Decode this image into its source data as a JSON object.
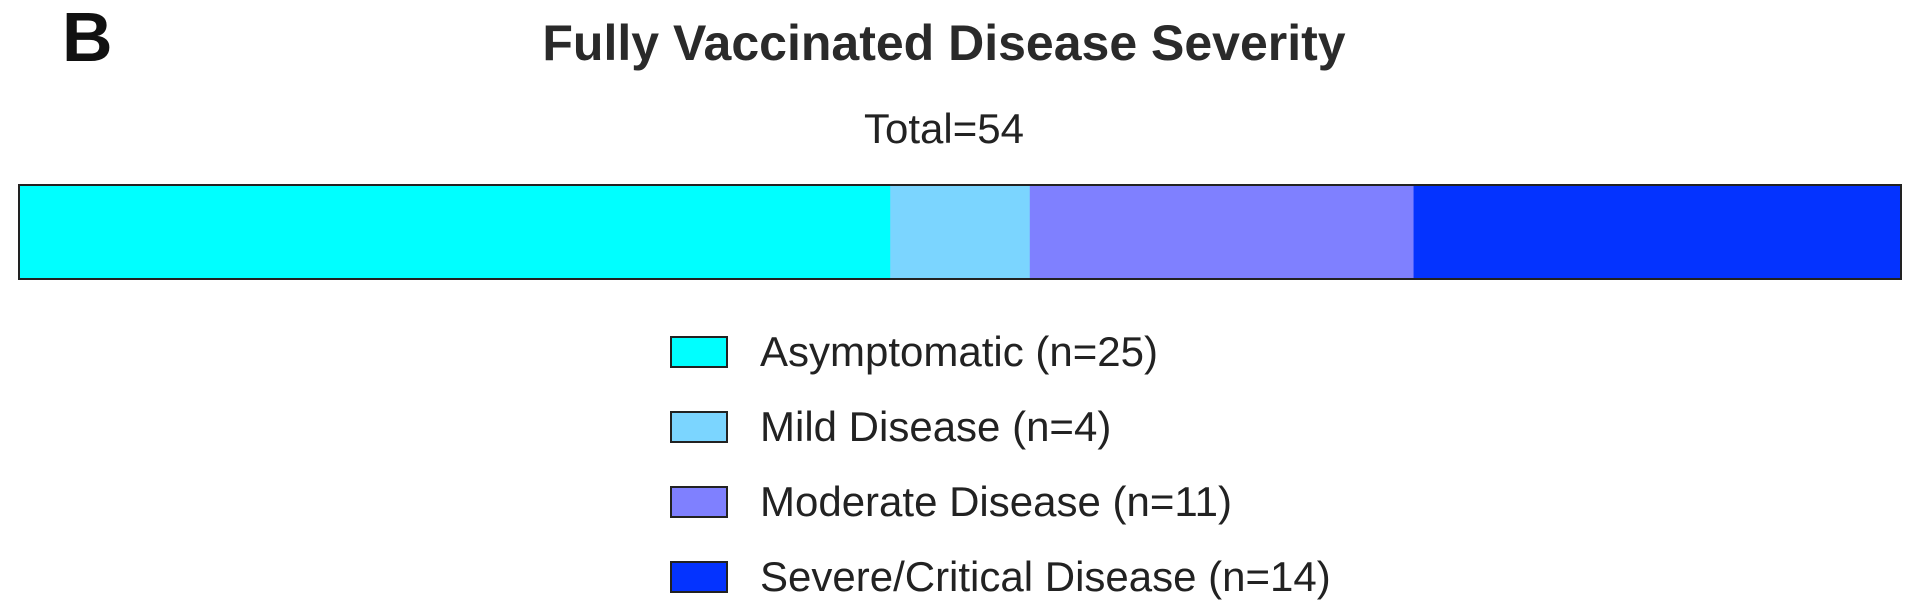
{
  "panel_letter": "B",
  "chart_data": {
    "type": "bar",
    "orientation": "horizontal-stacked",
    "title": "Fully Vaccinated Disease Severity",
    "subtitle": "Total=54",
    "total": 54,
    "categories": [
      "Asymptomatic (n=25)",
      "Mild Disease (n=4)",
      "Moderate Disease (n=11)",
      "Severe/Critical Disease (n=14)"
    ],
    "values": [
      25,
      4,
      11,
      14
    ],
    "colors": [
      "#00ffff",
      "#7bd5ff",
      "#7f80ff",
      "#0433ff"
    ],
    "legend_position": "bottom",
    "grid": false
  }
}
